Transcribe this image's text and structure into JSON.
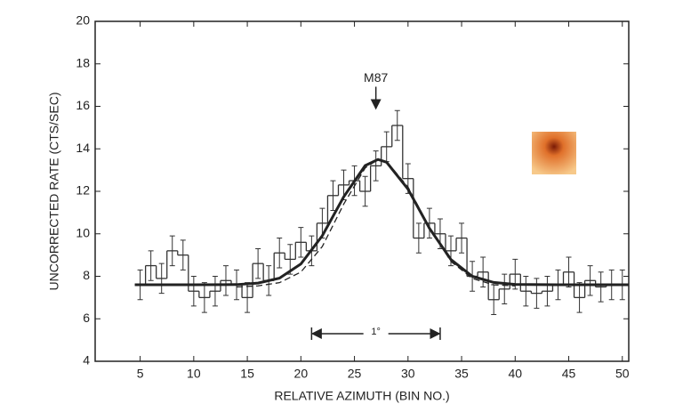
{
  "chart_data": {
    "type": "step-errorbar",
    "x_label": "RELATIVE AZIMUTH (BIN NO.)",
    "y_label": "UNCORRECTED RATE (CTS/SEC)",
    "xlim": [
      0.8,
      50.6
    ],
    "xticks": [
      5,
      10,
      15,
      20,
      25,
      30,
      35,
      40,
      45,
      50
    ],
    "ylim": [
      4,
      20
    ],
    "yticks": [
      4,
      6,
      8,
      10,
      12,
      14,
      16,
      18,
      20
    ],
    "series": [
      {
        "kind": "histogram",
        "color": "#333333",
        "error": 0.7,
        "x": [
          5,
          6,
          7,
          8,
          9,
          10,
          11,
          12,
          13,
          14,
          15,
          16,
          17,
          18,
          19,
          20,
          21,
          22,
          23,
          24,
          25,
          26,
          27,
          28,
          29,
          30,
          31,
          32,
          33,
          34,
          35,
          36,
          37,
          38,
          39,
          40,
          41,
          42,
          43,
          44,
          45,
          46,
          47,
          48,
          49,
          50
        ],
        "values": [
          7.6,
          8.5,
          7.9,
          9.2,
          9.0,
          7.3,
          7.0,
          7.3,
          7.8,
          7.6,
          7.0,
          8.6,
          7.8,
          9.1,
          8.8,
          9.6,
          9.2,
          10.5,
          11.8,
          12.3,
          12.5,
          12.0,
          13.2,
          14.1,
          15.1,
          12.6,
          9.8,
          10.5,
          10.0,
          9.2,
          9.8,
          8.0,
          8.2,
          6.9,
          7.4,
          8.1,
          7.3,
          7.2,
          7.3,
          7.6,
          8.2,
          7.0,
          7.8,
          7.5,
          7.6,
          7.6
        ]
      },
      {
        "kind": "fit",
        "color": "#222222",
        "dashed": false,
        "x": [
          4.5,
          10,
          14,
          16,
          18,
          20,
          22,
          24,
          26,
          27.2,
          28,
          30,
          32,
          34,
          36,
          38,
          40,
          44,
          50.6
        ],
        "values": [
          7.6,
          7.6,
          7.61,
          7.68,
          7.91,
          8.58,
          9.91,
          11.74,
          13.21,
          13.5,
          13.37,
          12.1,
          10.26,
          8.79,
          8.0,
          7.71,
          7.62,
          7.6,
          7.6
        ]
      },
      {
        "kind": "fit",
        "color": "#222222",
        "dashed": true,
        "x": [
          14,
          16,
          18,
          20,
          22,
          24,
          26,
          27.2,
          28,
          30,
          32,
          34,
          36,
          38,
          40
        ],
        "values": [
          7.5,
          7.55,
          7.7,
          8.2,
          9.4,
          11.4,
          13.1,
          13.5,
          13.4,
          12.2,
          10.3,
          8.7,
          7.9,
          7.6,
          7.55
        ]
      }
    ],
    "annotations": [
      {
        "text": "M87",
        "x": 27,
        "y": 17.3,
        "arrow_to": 15.9
      },
      {
        "text": "1°",
        "x": [
          21,
          33
        ],
        "y": 5.3
      }
    ]
  }
}
